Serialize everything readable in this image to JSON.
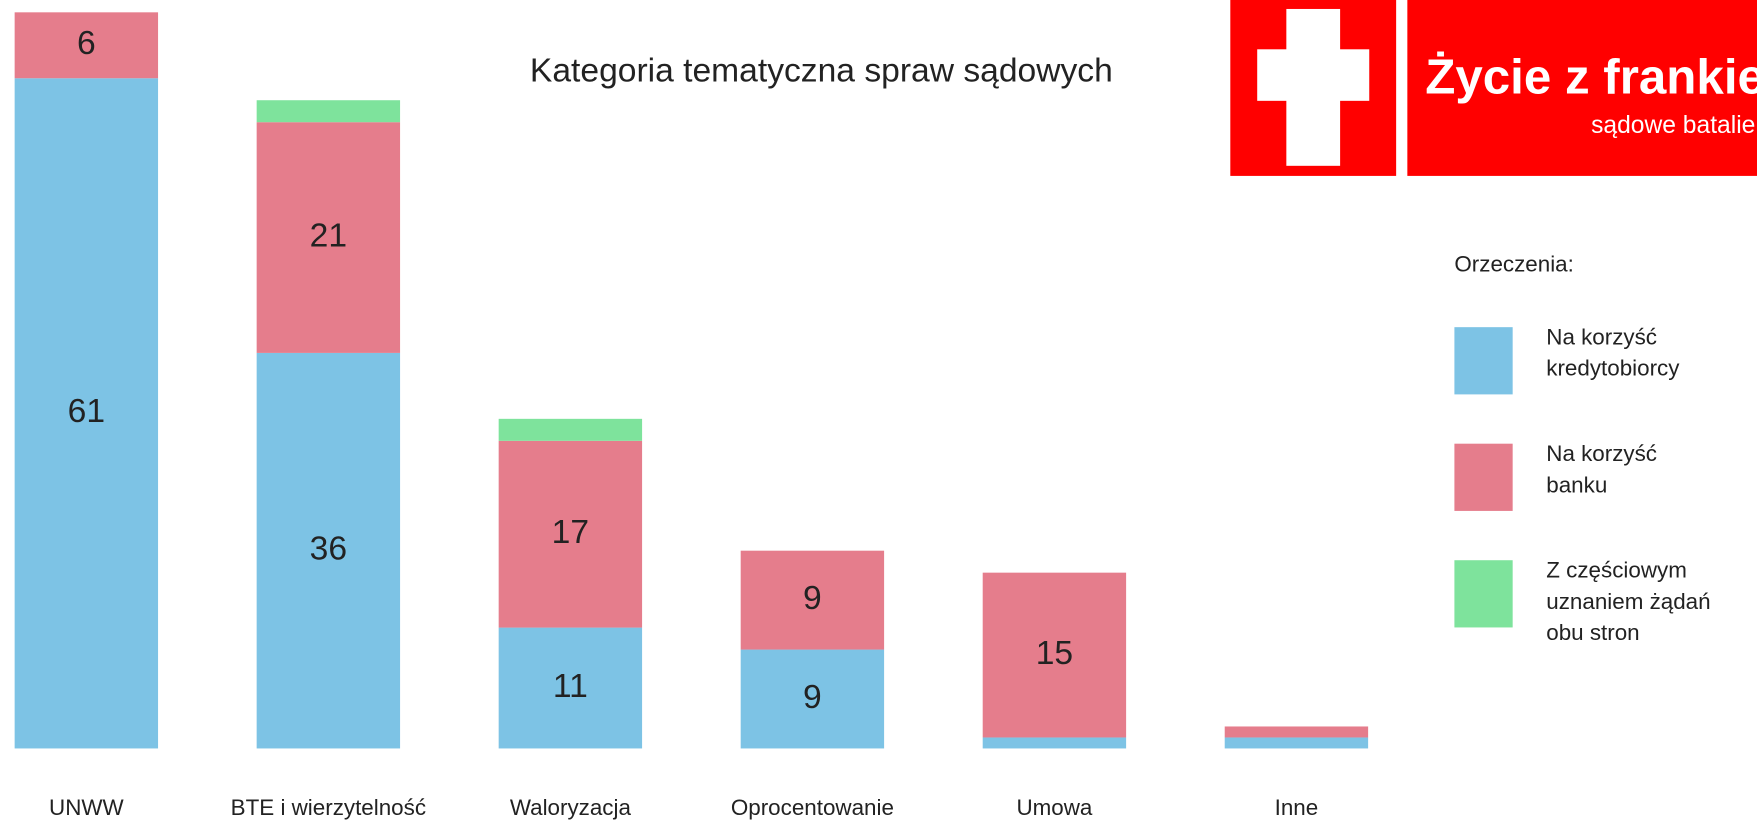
{
  "chart_data": {
    "type": "bar",
    "stacked": true,
    "title": "Kategoria tematyczna spraw sądowych",
    "logo_title": "Życie z frankiem",
    "logo_subtitle": "sądowe batalie",
    "legend_title": "Orzeczenia:",
    "categories": [
      "UNWW",
      "BTE i wierzytelność",
      "Waloryzacja",
      "Oprocentowanie",
      "Umowa",
      "Inne"
    ],
    "series": [
      {
        "name": "Na korzyść kredytobiorcy",
        "color": "#7dc3e5",
        "values": [
          61,
          36,
          11,
          9,
          1,
          1
        ]
      },
      {
        "name": "Na korzyść banku",
        "color": "#e57d8c",
        "values": [
          6,
          21,
          17,
          9,
          15,
          1
        ]
      },
      {
        "name": "Z częściowym uznaniem żądań obu stron",
        "color": "#7ee39c",
        "values": [
          0,
          2,
          2,
          0,
          0,
          0
        ]
      }
    ],
    "ylim": [
      0,
      67
    ],
    "grid": false,
    "legend": "right"
  }
}
